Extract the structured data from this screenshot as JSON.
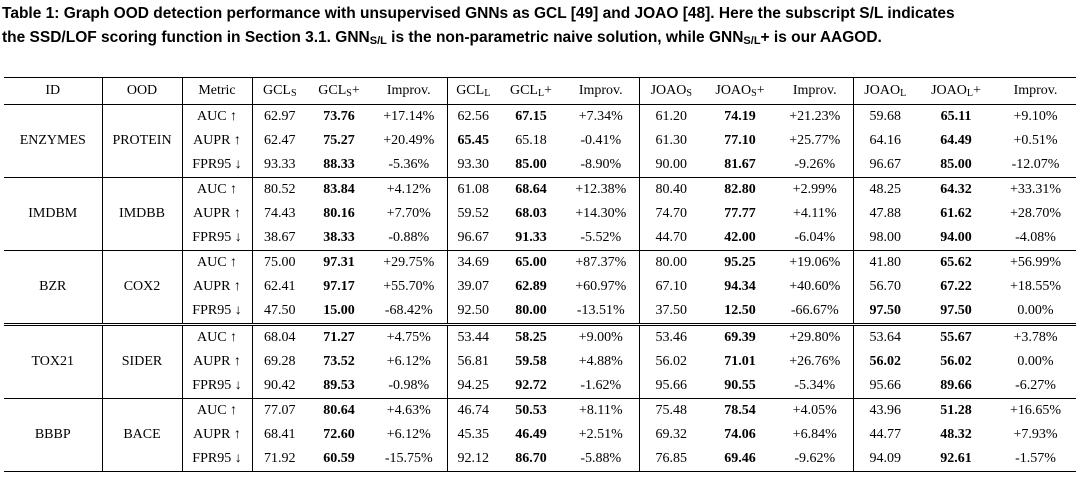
{
  "caption": {
    "line1": "Table 1: Graph OOD detection performance with unsupervised GNNs as GCL [49] and JOAO [48]. Here the subscript S/L indicates",
    "line2_a": "the SSD/LOF scoring function in Section 3.1. GNN",
    "line2_sub1": "S/L",
    "line2_b": " is the non-parametric naive solution, while GNN",
    "line2_sub2": "S/L",
    "line2_c": "+ is our AAGOD."
  },
  "headers": {
    "id": "ID",
    "ood": "OOD",
    "metric": "Metric",
    "gcls": {
      "base": "GCL",
      "sub": "S",
      "suffix": ""
    },
    "gcls_plus": {
      "base": "GCL",
      "sub": "S",
      "suffix": "+"
    },
    "improv1": "Improv.",
    "gcll": {
      "base": "GCL",
      "sub": "L",
      "suffix": ""
    },
    "gcll_plus": {
      "base": "GCL",
      "sub": "L",
      "suffix": "+"
    },
    "improv2": "Improv.",
    "joaos": {
      "base": "JOAO",
      "sub": "S",
      "suffix": ""
    },
    "joaos_plus": {
      "base": "JOAO",
      "sub": "S",
      "suffix": "+"
    },
    "improv3": "Improv.",
    "joaol": {
      "base": "JOAO",
      "sub": "L",
      "suffix": ""
    },
    "joaol_plus": {
      "base": "JOAO",
      "sub": "L",
      "suffix": "+"
    },
    "improv4": "Improv."
  },
  "groups": [
    {
      "id": "ENZYMES",
      "ood": "PROTEIN",
      "rows": [
        {
          "metric": "AUC ↑",
          "v": [
            "62.97",
            "73.76",
            "+17.14%",
            "62.56",
            "67.15",
            "+7.34%",
            "61.20",
            "74.19",
            "+21.23%",
            "59.68",
            "65.11",
            "+9.10%"
          ],
          "bold": [
            1,
            4,
            7,
            10
          ]
        },
        {
          "metric": "AUPR ↑",
          "v": [
            "62.47",
            "75.27",
            "+20.49%",
            "65.45",
            "65.18",
            "-0.41%",
            "61.30",
            "77.10",
            "+25.77%",
            "64.16",
            "64.49",
            "+0.51%"
          ],
          "bold": [
            1,
            3,
            7,
            10
          ]
        },
        {
          "metric": "FPR95 ↓",
          "v": [
            "93.33",
            "88.33",
            "-5.36%",
            "93.30",
            "85.00",
            "-8.90%",
            "90.00",
            "81.67",
            "-9.26%",
            "96.67",
            "85.00",
            "-12.07%"
          ],
          "bold": [
            1,
            4,
            7,
            10
          ]
        }
      ]
    },
    {
      "id": "IMDBM",
      "ood": "IMDBB",
      "rows": [
        {
          "metric": "AUC ↑",
          "v": [
            "80.52",
            "83.84",
            "+4.12%",
            "61.08",
            "68.64",
            "+12.38%",
            "80.40",
            "82.80",
            "+2.99%",
            "48.25",
            "64.32",
            "+33.31%"
          ],
          "bold": [
            1,
            4,
            7,
            10
          ]
        },
        {
          "metric": "AUPR ↑",
          "v": [
            "74.43",
            "80.16",
            "+7.70%",
            "59.52",
            "68.03",
            "+14.30%",
            "74.70",
            "77.77",
            "+4.11%",
            "47.88",
            "61.62",
            "+28.70%"
          ],
          "bold": [
            1,
            4,
            7,
            10
          ]
        },
        {
          "metric": "FPR95 ↓",
          "v": [
            "38.67",
            "38.33",
            "-0.88%",
            "96.67",
            "91.33",
            "-5.52%",
            "44.70",
            "42.00",
            "-6.04%",
            "98.00",
            "94.00",
            "-4.08%"
          ],
          "bold": [
            1,
            4,
            7,
            10
          ]
        }
      ]
    },
    {
      "id": "BZR",
      "ood": "COX2",
      "rows": [
        {
          "metric": "AUC ↑",
          "v": [
            "75.00",
            "97.31",
            "+29.75%",
            "34.69",
            "65.00",
            "+87.37%",
            "80.00",
            "95.25",
            "+19.06%",
            "41.80",
            "65.62",
            "+56.99%"
          ],
          "bold": [
            1,
            4,
            7,
            10
          ]
        },
        {
          "metric": "AUPR ↑",
          "v": [
            "62.41",
            "97.17",
            "+55.70%",
            "39.07",
            "62.89",
            "+60.97%",
            "67.10",
            "94.34",
            "+40.60%",
            "56.70",
            "67.22",
            "+18.55%"
          ],
          "bold": [
            1,
            4,
            7,
            10
          ]
        },
        {
          "metric": "FPR95 ↓",
          "v": [
            "47.50",
            "15.00",
            "-68.42%",
            "92.50",
            "80.00",
            "-13.51%",
            "37.50",
            "12.50",
            "-66.67%",
            "97.50",
            "97.50",
            "0.00%"
          ],
          "bold": [
            1,
            4,
            7,
            9,
            10
          ]
        }
      ]
    },
    {
      "id": "TOX21",
      "ood": "SIDER",
      "rows": [
        {
          "metric": "AUC ↑",
          "v": [
            "68.04",
            "71.27",
            "+4.75%",
            "53.44",
            "58.25",
            "+9.00%",
            "53.46",
            "69.39",
            "+29.80%",
            "53.64",
            "55.67",
            "+3.78%"
          ],
          "bold": [
            1,
            4,
            7,
            10
          ]
        },
        {
          "metric": "AUPR ↑",
          "v": [
            "69.28",
            "73.52",
            "+6.12%",
            "56.81",
            "59.58",
            "+4.88%",
            "56.02",
            "71.01",
            "+26.76%",
            "56.02",
            "56.02",
            "0.00%"
          ],
          "bold": [
            1,
            4,
            7,
            9,
            10
          ]
        },
        {
          "metric": "FPR95 ↓",
          "v": [
            "90.42",
            "89.53",
            "-0.98%",
            "94.25",
            "92.72",
            "-1.62%",
            "95.66",
            "90.55",
            "-5.34%",
            "95.66",
            "89.66",
            "-6.27%"
          ],
          "bold": [
            1,
            4,
            7,
            10
          ]
        }
      ]
    },
    {
      "id": "BBBP",
      "ood": "BACE",
      "rows": [
        {
          "metric": "AUC ↑",
          "v": [
            "77.07",
            "80.64",
            "+4.63%",
            "46.74",
            "50.53",
            "+8.11%",
            "75.48",
            "78.54",
            "+4.05%",
            "43.96",
            "51.28",
            "+16.65%"
          ],
          "bold": [
            1,
            4,
            7,
            10
          ]
        },
        {
          "metric": "AUPR ↑",
          "v": [
            "68.41",
            "72.60",
            "+6.12%",
            "45.35",
            "46.49",
            "+2.51%",
            "69.32",
            "74.06",
            "+6.84%",
            "44.77",
            "48.32",
            "+7.93%"
          ],
          "bold": [
            1,
            4,
            7,
            10
          ]
        },
        {
          "metric": "FPR95 ↓",
          "v": [
            "71.92",
            "60.59",
            "-15.75%",
            "92.12",
            "86.70",
            "-5.88%",
            "76.85",
            "69.46",
            "-9.62%",
            "94.09",
            "92.61",
            "-1.57%"
          ],
          "bold": [
            1,
            4,
            7,
            10
          ]
        }
      ]
    }
  ]
}
